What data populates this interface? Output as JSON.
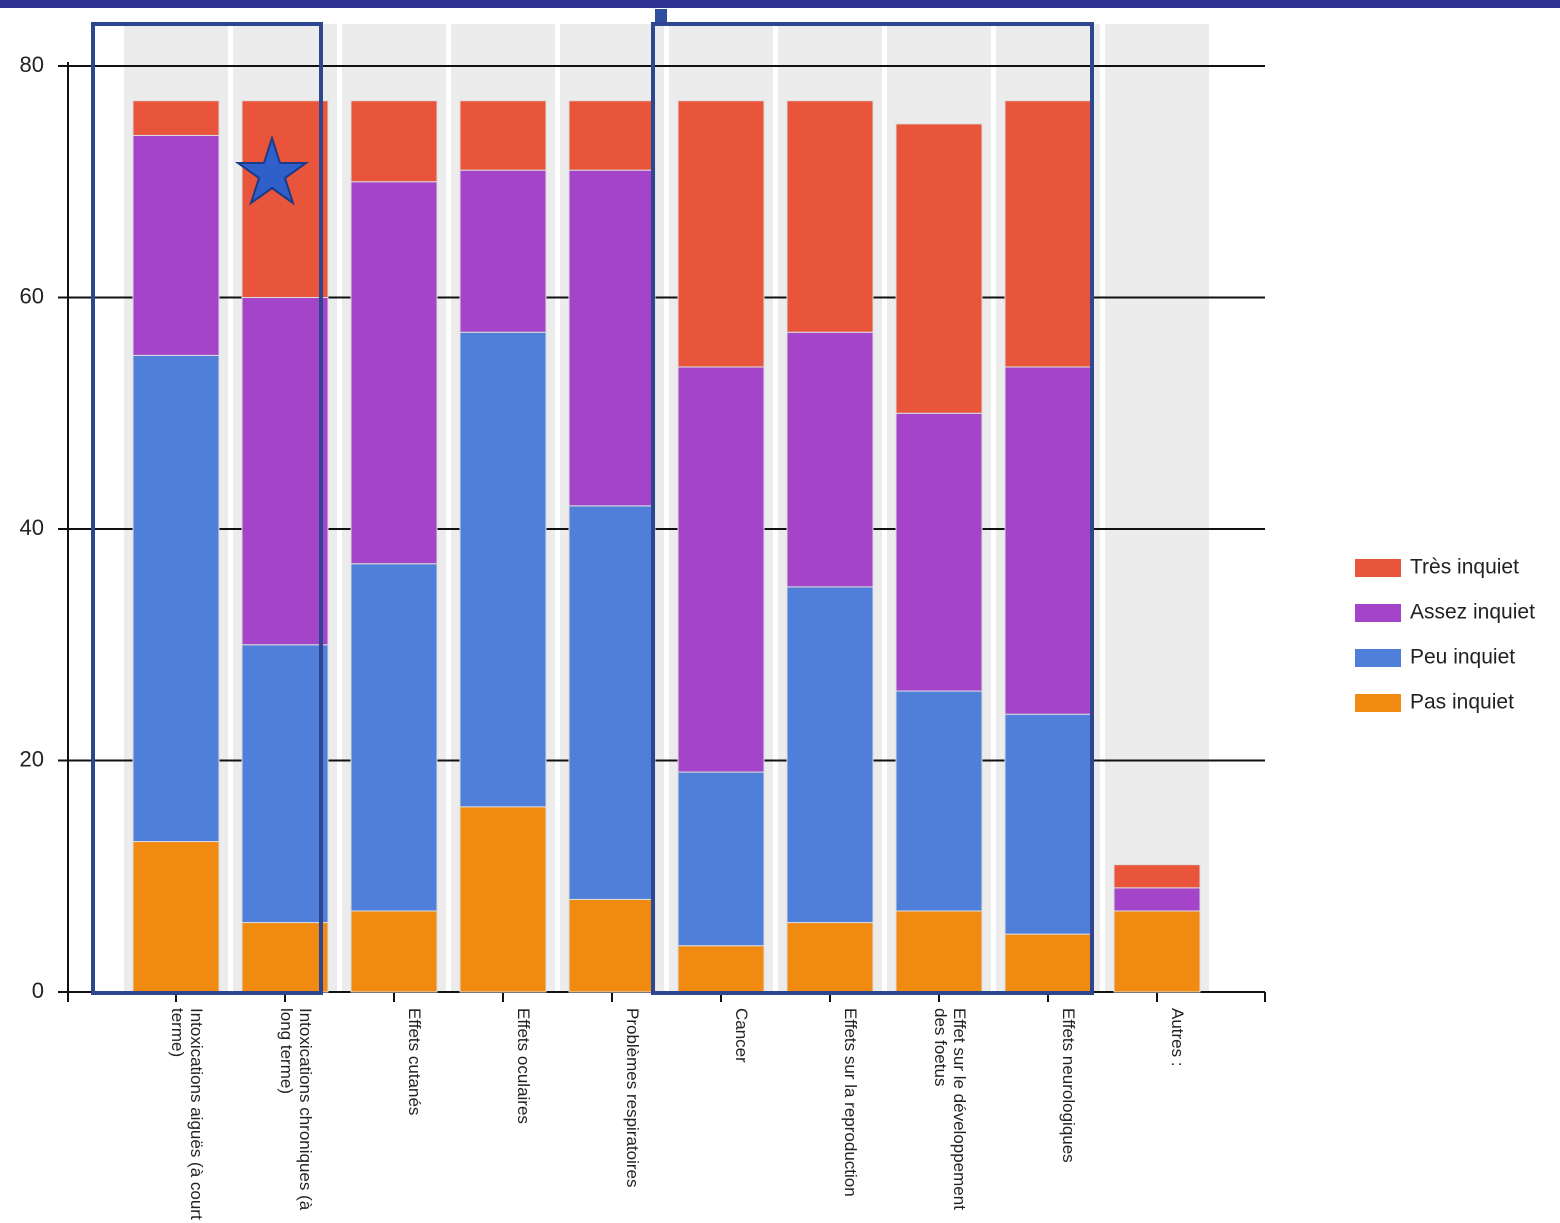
{
  "chart_data": {
    "type": "stacked-bar",
    "categories": [
      "Intoxications aiguës (à court terme)",
      "Intoxications chroniques (à long terme)",
      "Effets cutanés",
      "Effets oculaires",
      "Problèmes respiratoires",
      "Cancer",
      "Effets sur la reproduction",
      "Effet sur le développement des foetus",
      "Effets neurologiques",
      "Autres :"
    ],
    "series": [
      {
        "name": "Pas inquiet",
        "color": "#f08a10",
        "values": [
          13,
          6,
          7,
          16,
          8,
          4,
          6,
          7,
          5,
          7
        ]
      },
      {
        "name": "Peu inquiet",
        "color": "#4f7fd8",
        "values": [
          42,
          24,
          30,
          41,
          34,
          15,
          29,
          19,
          19,
          0
        ]
      },
      {
        "name": "Assez inquiet",
        "color": "#a444c8",
        "values": [
          19,
          30,
          33,
          14,
          29,
          35,
          22,
          24,
          30,
          2
        ]
      },
      {
        "name": "Très inquiet",
        "color": "#e8553a",
        "values": [
          3,
          17,
          7,
          6,
          6,
          23,
          20,
          25,
          23,
          2
        ]
      }
    ],
    "ylim": [
      0,
      80
    ],
    "yticks": [
      0,
      20,
      40,
      60,
      80
    ],
    "grid": true
  }
}
